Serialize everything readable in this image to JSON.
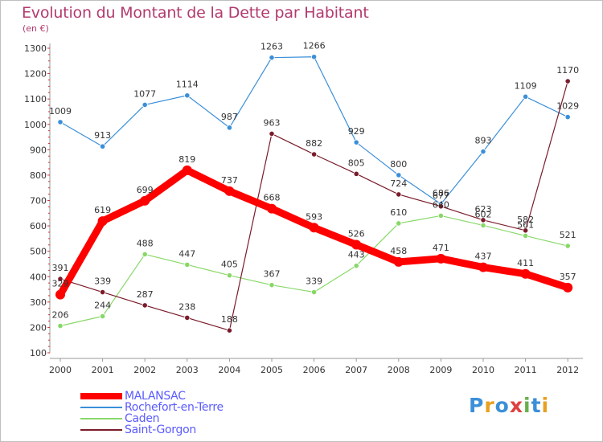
{
  "title": "Evolution du Montant de la Dette par Habitant",
  "subtitle": "(en €)",
  "logo": {
    "text": "Proxiti",
    "letter_colors": [
      "#3b8fd9",
      "#e8a020",
      "#3b8fd9",
      "#e04040",
      "#6ab04c",
      "#3b8fd9",
      "#e8a020"
    ]
  },
  "chart_data": {
    "type": "line",
    "title": "Evolution du Montant de la Dette par Habitant",
    "ylabel": "(en €)",
    "ylim": [
      100,
      1300
    ],
    "yticks": [
      100,
      200,
      300,
      400,
      500,
      600,
      700,
      800,
      900,
      1000,
      1100,
      1200,
      1300
    ],
    "x": [
      "2000",
      "2001",
      "2002",
      "2003",
      "2004",
      "2005",
      "2006",
      "2007",
      "2008",
      "2009",
      "2010",
      "2011",
      "2012"
    ],
    "grid": false,
    "legend": "bottom-left",
    "series": [
      {
        "name": "MALANSAC",
        "color": "#ff0000",
        "emphasis": true,
        "values": [
          329,
          619,
          699,
          819,
          737,
          668,
          593,
          526,
          458,
          471,
          437,
          411,
          357
        ],
        "labels": [
          "329",
          "619",
          "699",
          "819",
          "737",
          "668",
          "593",
          "526",
          "458",
          "471",
          "437",
          "411",
          "357"
        ]
      },
      {
        "name": "Rochefort-en-Terre",
        "color": "#3b8fd9",
        "values": [
          1009,
          913,
          1077,
          1114,
          987,
          1263,
          1266,
          929,
          800,
          686,
          893,
          1109,
          1029
        ],
        "labels": [
          "1009",
          "913",
          "1077",
          "1114",
          "987",
          "1263",
          "1266",
          "929",
          "800",
          "686",
          "893",
          "1109",
          "1029"
        ]
      },
      {
        "name": "Caden",
        "color": "#88d868",
        "values": [
          206,
          244,
          488,
          447,
          405,
          367,
          339,
          443,
          610,
          640,
          602,
          561,
          521
        ],
        "labels": [
          "206",
          "244",
          "488",
          "447",
          "405",
          "367",
          "339",
          "443",
          "610",
          "640",
          "602",
          "561",
          "521"
        ]
      },
      {
        "name": "Saint-Gorgon",
        "color": "#7a1c2a",
        "values": [
          391,
          339,
          287,
          238,
          188,
          963,
          882,
          805,
          724,
          677,
          623,
          582,
          1170
        ],
        "labels": [
          "391",
          "339",
          "287",
          "238",
          "188",
          "963",
          "882",
          "805",
          "724",
          "677",
          "623",
          "582",
          "1170"
        ]
      }
    ]
  }
}
